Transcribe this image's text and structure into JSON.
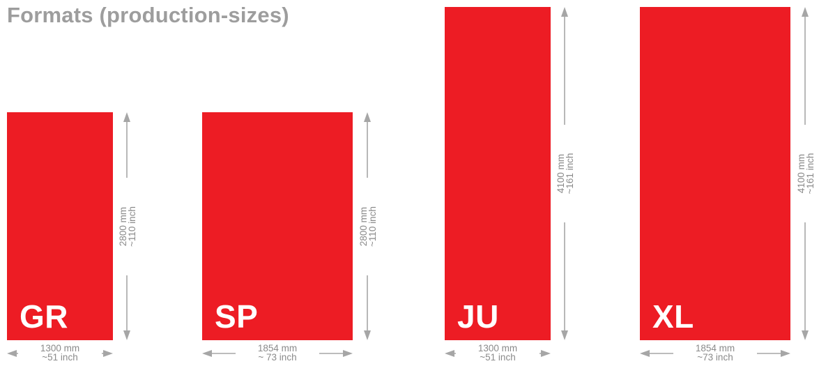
{
  "title": "Formats (production-sizes)",
  "colors": {
    "banner": "#ed1c24",
    "title": "#9d9d9d",
    "dimension": "#a6a6a6",
    "dimension_text": "#8a8a8a"
  },
  "formats": [
    {
      "code": "GR",
      "width_mm": "1300 mm",
      "width_inch": "~51 inch",
      "height_mm": "2800 mm",
      "height_inch": "~110 inch"
    },
    {
      "code": "SP",
      "width_mm": "1854 mm",
      "width_inch": "~ 73 inch",
      "height_mm": "2800 mm",
      "height_inch": "~110 inch"
    },
    {
      "code": "JU",
      "width_mm": "1300 mm",
      "width_inch": "~51 inch",
      "height_mm": "4100 mm",
      "height_inch": "~161 inch"
    },
    {
      "code": "XL",
      "width_mm": "1854 mm",
      "width_inch": "~73 inch",
      "height_mm": "4100 mm",
      "height_inch": "~161 inch"
    }
  ]
}
